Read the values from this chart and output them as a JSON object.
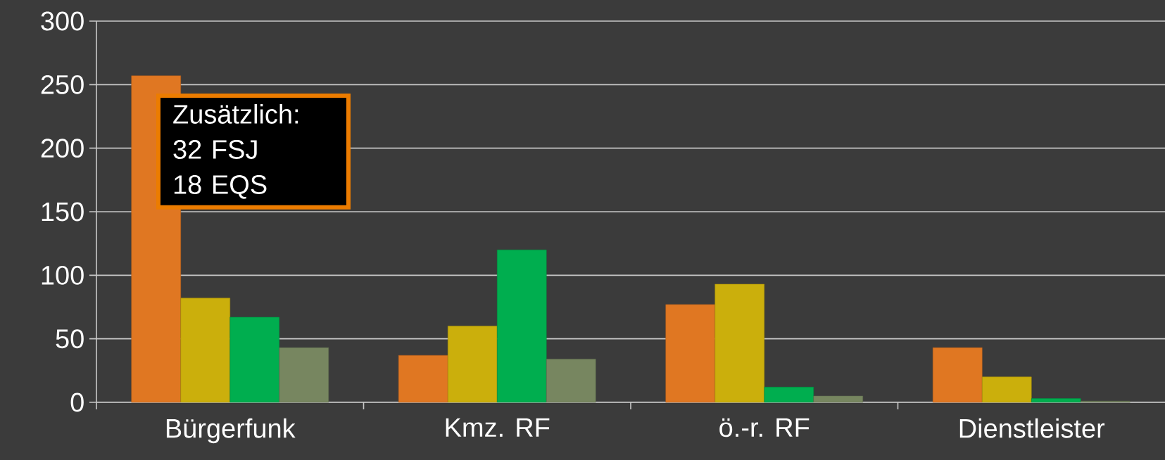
{
  "chart_data": {
    "type": "bar",
    "categories": [
      "Bürgerfunk",
      "Kmz. RF",
      "ö.-r. RF",
      "Dienstleister"
    ],
    "series": [
      {
        "color": "#e07722",
        "values": [
          257,
          37,
          77,
          43
        ]
      },
      {
        "color": "#cbaf0c",
        "values": [
          82,
          60,
          93,
          20
        ]
      },
      {
        "color": "#00ae4f",
        "values": [
          67,
          120,
          12,
          3
        ]
      },
      {
        "color": "#778660",
        "values": [
          43,
          34,
          5,
          1
        ]
      }
    ],
    "ylim": [
      0,
      300
    ],
    "yticks": [
      0,
      50,
      100,
      150,
      200,
      250,
      300
    ],
    "grid": "y",
    "annotations": [
      "Zusätzlich:",
      "32 FSJ",
      "18 EQS"
    ]
  }
}
